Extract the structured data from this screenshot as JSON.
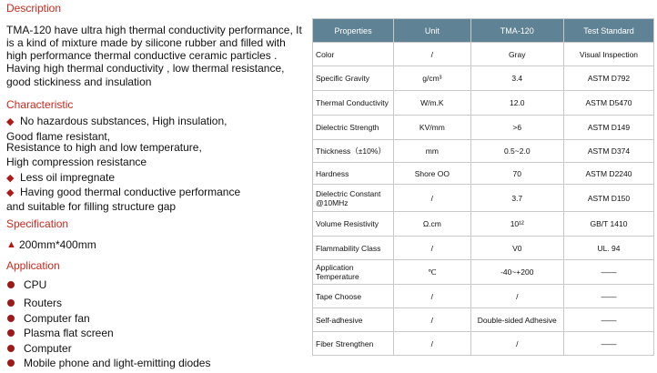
{
  "description": {
    "heading": "Description",
    "lines": [
      "TMA-120 have ultra high thermal conductivity performance, It",
      "is a kind of mixture made by silicone rubber and filled with",
      "high performance thermal conductive ceramic particles .",
      "Having high thermal conductivity , low thermal resistance,",
      "good stickiness and insulation"
    ]
  },
  "characteristic": {
    "heading": "Characteristic",
    "lines": [
      "No hazardous substances,  High insulation,",
      "Good flame resistant,",
      "Resistance to high and low temperature,",
      "High compression resistance",
      "Less oil impregnate",
      "Having  good thermal conductive performance",
      "and suitable for filling structure gap"
    ]
  },
  "specification": {
    "heading": "Specification",
    "lines": [
      "200mm*400mm"
    ]
  },
  "application": {
    "heading": "Application",
    "items": [
      "CPU",
      "Routers",
      "Computer fan",
      "Plasma flat screen",
      "Computer",
      "Mobile phone and light-emitting diodes"
    ]
  },
  "table": {
    "header": [
      "Properties",
      "Unit",
      "TMA-120",
      "Test Standard"
    ],
    "rows": [
      [
        "Color",
        "/",
        "Gray",
        "Visual Inspection"
      ],
      [
        "Specific Gravity",
        "g/cm³",
        "3.4",
        "ASTM D792"
      ],
      [
        "Thermal Conductivity",
        "W/m.K",
        "12.0",
        "ASTM D5470"
      ],
      [
        "Dielectric Strength",
        "KV/mm",
        ">6",
        "ASTM D149"
      ],
      [
        "Thickness（±10%）",
        "mm",
        "0.5~2.0",
        "ASTM D374"
      ],
      [
        "Hardness",
        "Shore OO",
        "70",
        "ASTM D2240"
      ],
      [
        "Dielectric Constant @10MHz",
        "/",
        "3.7",
        "ASTM D150"
      ],
      [
        "Volume Resistivity",
        "Ω.cm",
        "10¹²",
        "GB/T 1410"
      ],
      [
        "Flammability Class",
        "/",
        "V0",
        "UL. 94"
      ],
      [
        "Application Temperature",
        "℃",
        "-40~+200",
        "——"
      ],
      [
        "Tape Choose",
        "/",
        "/",
        "——"
      ],
      [
        "Self-adhesive",
        "/",
        "Double-sided Adhesive",
        "——"
      ],
      [
        "Fiber Strengthen",
        "/",
        "/",
        "——"
      ]
    ]
  }
}
